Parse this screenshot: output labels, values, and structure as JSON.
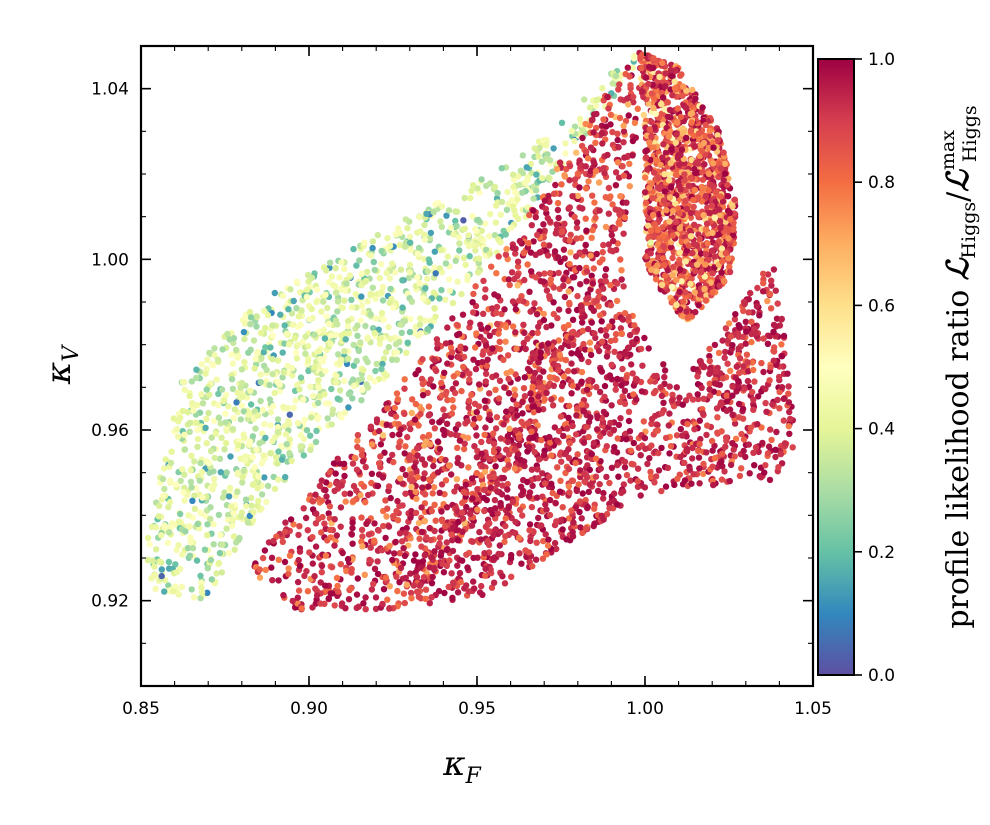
{
  "chart_data": {
    "type": "scatter",
    "title": "",
    "xlabel": {
      "main": "κ",
      "sub": "F"
    },
    "ylabel": {
      "main": "κ",
      "sub": "V"
    },
    "xlim": [
      0.85,
      1.05
    ],
    "ylim": [
      0.9,
      1.05
    ],
    "xticks": [
      0.85,
      0.9,
      0.95,
      1.0,
      1.05
    ],
    "xtick_labels": [
      "0.85",
      "0.90",
      "0.95",
      "1.00",
      "1.05"
    ],
    "yticks": [
      0.92,
      0.96,
      1.0,
      1.04
    ],
    "ytick_labels": [
      "0.92",
      "0.96",
      "1.00",
      "1.04"
    ],
    "grid": false,
    "colormap": "Spectral_r",
    "colormap_stops": [
      "#5e4fa2",
      "#3288bd",
      "#66c2a5",
      "#abdda4",
      "#e6f598",
      "#ffffbf",
      "#fee08b",
      "#fdae61",
      "#f46d43",
      "#d53e4f",
      "#9e0142"
    ],
    "colorbar": {
      "label_prefix": "profile likelihood ratio",
      "label_math_num": "ℒ",
      "label_num_sub": "Higgs",
      "label_slash": "/",
      "label_math_den": "ℒ",
      "label_den_sup": "max",
      "label_den_sub": "Higgs",
      "range": [
        0.0,
        1.0
      ],
      "ticks": [
        0.0,
        0.2,
        0.4,
        0.6,
        0.8,
        1.0
      ],
      "tick_labels": [
        "0.0",
        "0.2",
        "0.4",
        "0.6",
        "0.8",
        "1.0"
      ]
    },
    "regions": [
      {
        "name": "",
        "description_value": "upper-left band: kappa_V above the diagonal, value rising toward the diagonal edge",
        "polygon": [
          [
            0.852,
            0.935
          ],
          [
            0.862,
            0.972
          ],
          [
            0.885,
            0.99
          ],
          [
            0.93,
            1.01
          ],
          [
            0.965,
            1.025
          ],
          [
            0.985,
            1.04
          ],
          [
            0.997,
            1.049
          ],
          [
            0.997,
            1.045
          ],
          [
            0.96,
            1.005
          ],
          [
            0.93,
            0.978
          ],
          [
            0.9,
            0.955
          ],
          [
            0.88,
            0.935
          ],
          [
            0.87,
            0.92
          ],
          [
            0.852,
            0.922
          ]
        ],
        "value_low": 0.0,
        "value_high": 0.5
      },
      {
        "name": "",
        "description_value": "central diagonal band between the two white gaps",
        "polygon": [
          [
            0.882,
            0.928
          ],
          [
            0.905,
            0.95
          ],
          [
            0.935,
            0.978
          ],
          [
            0.96,
            1.005
          ],
          [
            0.985,
            1.035
          ],
          [
            0.998,
            1.049
          ],
          [
            1.0,
            1.045
          ],
          [
            0.993,
            1.0
          ],
          [
            0.975,
            0.975
          ],
          [
            0.955,
            0.945
          ],
          [
            0.93,
            0.918
          ],
          [
            0.915,
            0.918
          ],
          [
            0.895,
            0.918
          ]
        ],
        "value_low": 0.6,
        "value_high": 1.0
      },
      {
        "name": "",
        "description_value": "lower-right lobe",
        "polygon": [
          [
            0.93,
            0.925
          ],
          [
            0.945,
            0.945
          ],
          [
            0.965,
            0.975
          ],
          [
            0.985,
            0.993
          ],
          [
            0.993,
            0.998
          ],
          [
            0.998,
            0.985
          ],
          [
            1.01,
            0.97
          ],
          [
            1.025,
            0.985
          ],
          [
            1.038,
            1.0
          ],
          [
            1.041,
            0.985
          ],
          [
            1.045,
            0.955
          ],
          [
            1.038,
            0.948
          ],
          [
            1.02,
            0.947
          ],
          [
            1.0,
            0.945
          ],
          [
            0.98,
            0.935
          ],
          [
            0.955,
            0.922
          ],
          [
            0.935,
            0.918
          ]
        ],
        "value_low": 0.7,
        "value_high": 1.0
      },
      {
        "name": "",
        "description_value": "upper-right arc tail",
        "polygon": [
          [
            0.998,
            1.049
          ],
          [
            1.01,
            1.045
          ],
          [
            1.022,
            1.03
          ],
          [
            1.028,
            1.01
          ],
          [
            1.025,
            0.995
          ],
          [
            1.012,
            0.985
          ],
          [
            1.0,
            0.998
          ],
          [
            1.0,
            1.03
          ]
        ],
        "value_low": 0.4,
        "value_high": 1.0
      }
    ]
  }
}
